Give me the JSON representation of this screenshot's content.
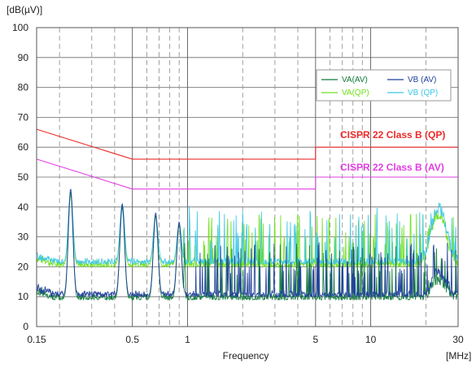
{
  "chart_data": {
    "type": "line",
    "title": "",
    "ylabel": "[dB(µV)]",
    "xlabel": "Frequency",
    "xunit": "[MHz]",
    "xscale": "log",
    "xlim": [
      0.15,
      30
    ],
    "ylim": [
      0,
      100
    ],
    "grid": true,
    "legend_position": "upper-right",
    "y_ticks": [
      "100",
      "90",
      "80",
      "70",
      "60",
      "50",
      "40",
      "30",
      "20",
      "10",
      "0"
    ],
    "x_ticks": [
      {
        "value": 0.15,
        "label": "0.15"
      },
      {
        "value": 0.5,
        "label": "0.5"
      },
      {
        "value": 1,
        "label": "1"
      },
      {
        "value": 5,
        "label": "5"
      },
      {
        "value": 10,
        "label": "10"
      },
      {
        "value": 30,
        "label": "30"
      }
    ],
    "legend": [
      {
        "name": "VA(AV)",
        "color": "#0f7a3a"
      },
      {
        "name": "VB (AV)",
        "color": "#1f3f9a"
      },
      {
        "name": "VA(QP)",
        "color": "#6fe01c"
      },
      {
        "name": "VB (QP)",
        "color": "#3cc7e6"
      }
    ],
    "limit_lines": [
      {
        "name": "CISPR 22 Class B (QP)",
        "color": "#ee2a2a",
        "points": [
          [
            0.15,
            66
          ],
          [
            0.5,
            56
          ],
          [
            5,
            56
          ],
          [
            5,
            60
          ],
          [
            30,
            60
          ]
        ]
      },
      {
        "name": "CISPR 22 Class B (AV)",
        "color": "#e23ee2",
        "points": [
          [
            0.15,
            56
          ],
          [
            0.5,
            46
          ],
          [
            5,
            46
          ],
          [
            5,
            50
          ],
          [
            30,
            50
          ]
        ]
      }
    ],
    "series": [
      {
        "name": "VA(QP)",
        "color": "#6fe01c",
        "base": 20,
        "peaks": [
          [
            0.23,
            44
          ],
          [
            0.44,
            40
          ],
          [
            0.67,
            37
          ],
          [
            0.9,
            34
          ]
        ],
        "rise": [
          [
            22,
            38
          ],
          [
            25,
            38
          ]
        ]
      },
      {
        "name": "VB (QP)",
        "color": "#3cc7e6",
        "base": 21,
        "peaks": [
          [
            0.23,
            45
          ],
          [
            0.44,
            41
          ],
          [
            0.67,
            37
          ],
          [
            0.9,
            34
          ]
        ],
        "rise": [
          [
            22,
            40
          ],
          [
            25,
            40
          ]
        ]
      },
      {
        "name": "VA(AV)",
        "color": "#0f7a3a",
        "base": 9,
        "peaks": [
          [
            0.23,
            45
          ],
          [
            0.44,
            40
          ],
          [
            0.67,
            37
          ],
          [
            0.9,
            34
          ]
        ],
        "rise": [
          [
            22,
            16
          ],
          [
            25,
            16
          ]
        ]
      },
      {
        "name": "VB (AV)",
        "color": "#1f3f9a",
        "base": 10,
        "peaks": [
          [
            0.23,
            46
          ],
          [
            0.44,
            41
          ],
          [
            0.67,
            38
          ],
          [
            0.9,
            35
          ]
        ],
        "rise": [
          [
            22,
            18
          ],
          [
            25,
            18
          ]
        ]
      }
    ]
  }
}
